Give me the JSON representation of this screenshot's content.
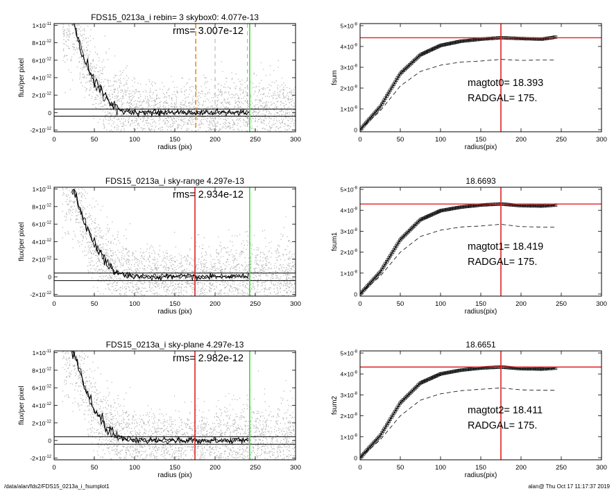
{
  "footer": {
    "path": "/data/alan/fds2/FDS15_0213a_i_fsumplot1",
    "stamp": "alan@  Thu Oct 17 11:17:37 2019"
  },
  "colors": {
    "red": "#e02020",
    "green": "#33dd33",
    "orange": "#f08a1c",
    "points": "#b0b0b0",
    "curve": "#000000"
  },
  "chart_data": [
    {
      "id": "profile0",
      "type": "scatter",
      "title": "FDS15_0213a_i rebin= 3    skybox0:  4.077e-13",
      "annotation": "rms= 3.007e-12",
      "xlabel": "radius (pix)",
      "ylabel": "flux/per pixel",
      "xlim": [
        0,
        300
      ],
      "ylim": [
        -2.2e-12,
        1.02e-11
      ],
      "xticks": [
        0,
        50,
        100,
        150,
        200,
        250,
        300
      ],
      "yticks": [
        -2e-12,
        0,
        2e-12,
        4e-12,
        6e-12,
        8e-12,
        1e-11
      ],
      "ytick_labels": [
        {
          "m": "-2",
          "e": "-12"
        },
        {
          "m": "0",
          "e": ""
        },
        {
          "m": "2",
          "e": "-12"
        },
        {
          "m": "4",
          "e": "-12"
        },
        {
          "m": "6",
          "e": "-12"
        },
        {
          "m": "8",
          "e": "-12"
        },
        {
          "m": "1",
          "e": "-11"
        }
      ],
      "sky_lines": [
        4.077e-13,
        -4.077e-13
      ],
      "vlines": [
        {
          "x": 176,
          "color": "orange",
          "style": "dashed"
        },
        {
          "x": 200,
          "color": "gray",
          "style": "dashed"
        },
        {
          "x": 240,
          "color": "gray",
          "style": "dashed"
        },
        {
          "x": 243,
          "color": "green",
          "style": "solid"
        }
      ],
      "profile": {
        "x": [
          25,
          30,
          35,
          40,
          45,
          50,
          55,
          60,
          65,
          70,
          75,
          80,
          90,
          100,
          120,
          150,
          200,
          243
        ],
        "y": [
          1e-11,
          8.5e-12,
          6.9e-12,
          5.6e-12,
          4.5e-12,
          3.6e-12,
          2.9e-12,
          2.2e-12,
          1.6e-12,
          1.1e-12,
          7e-13,
          4e-13,
          1.5e-13,
          5e-14,
          0,
          0,
          0,
          0
        ]
      }
    },
    {
      "id": "fsum0",
      "type": "scatter",
      "title": "",
      "annotation_lines": [
        "magtot0= 18.393",
        "RADGAL=    175."
      ],
      "xlabel": "radius(pix)",
      "ylabel": "fsum",
      "xlim": [
        0,
        300
      ],
      "ylim": [
        -1e-09,
        5.1e-08
      ],
      "xticks": [
        0,
        50,
        100,
        150,
        200,
        250,
        300
      ],
      "yticks": [
        0,
        1e-08,
        2e-08,
        3e-08,
        4e-08,
        5e-08
      ],
      "ytick_labels": [
        {
          "m": "0",
          "e": ""
        },
        {
          "m": "1×10",
          "e": "-8"
        },
        {
          "m": "2×10",
          "e": "-8"
        },
        {
          "m": "3×10",
          "e": "-8"
        },
        {
          "m": "4×10",
          "e": "-8"
        },
        {
          "m": "5×10",
          "e": "-8"
        }
      ],
      "hline": 4.42e-08,
      "vline": 175,
      "fsum": {
        "x": [
          0,
          25,
          50,
          75,
          100,
          125,
          150,
          175,
          200,
          225,
          243
        ],
        "y": [
          0,
          1.1e-08,
          2.7e-08,
          3.6e-08,
          4.05e-08,
          4.25e-08,
          4.35e-08,
          4.42e-08,
          4.38e-08,
          4.35e-08,
          4.45e-08
        ]
      },
      "fsum_dashed": {
        "x": [
          0,
          25,
          50,
          75,
          100,
          125,
          150,
          175,
          200,
          225,
          243
        ],
        "y": [
          0,
          9e-09,
          2.1e-08,
          2.8e-08,
          3.1e-08,
          3.25e-08,
          3.3e-08,
          3.38e-08,
          3.33e-08,
          3.35e-08,
          3.35e-08
        ]
      }
    },
    {
      "id": "profile1",
      "type": "scatter",
      "title": "FDS15_0213a_i sky-range  4.297e-13",
      "annotation": "rms= 2.934e-12",
      "xlabel": "radius (pix)",
      "ylabel": "flux/per pixel",
      "xlim": [
        0,
        300
      ],
      "ylim": [
        -2.2e-12,
        1.02e-11
      ],
      "xticks": [
        0,
        50,
        100,
        150,
        200,
        250,
        300
      ],
      "yticks": [
        -2e-12,
        0,
        2e-12,
        4e-12,
        6e-12,
        8e-12,
        1e-11
      ],
      "ytick_labels": [
        {
          "m": "-2",
          "e": "-12"
        },
        {
          "m": "0",
          "e": ""
        },
        {
          "m": "2",
          "e": "-12"
        },
        {
          "m": "4",
          "e": "-12"
        },
        {
          "m": "6",
          "e": "-12"
        },
        {
          "m": "8",
          "e": "-12"
        },
        {
          "m": "1",
          "e": "-11"
        }
      ],
      "sky_lines": [
        4.297e-13,
        -4.297e-13
      ],
      "vlines": [
        {
          "x": 175,
          "color": "red",
          "style": "solid"
        },
        {
          "x": 243,
          "color": "green",
          "style": "solid"
        }
      ],
      "profile": {
        "x": [
          25,
          30,
          35,
          40,
          45,
          50,
          55,
          60,
          65,
          70,
          75,
          80,
          90,
          100,
          120,
          150,
          200,
          243
        ],
        "y": [
          1e-11,
          8.5e-12,
          6.9e-12,
          5.6e-12,
          4.5e-12,
          3.6e-12,
          2.9e-12,
          2.2e-12,
          1.6e-12,
          1.1e-12,
          7e-13,
          4e-13,
          1.5e-13,
          5e-14,
          0,
          0,
          0,
          0
        ]
      }
    },
    {
      "id": "fsum1",
      "type": "scatter",
      "title": "18.6693",
      "annotation_lines": [
        "magtot1= 18.419",
        "RADGAL=    175."
      ],
      "xlabel": "radius(pix)",
      "ylabel": "fsum1",
      "xlim": [
        0,
        300
      ],
      "ylim": [
        -1e-09,
        5.1e-08
      ],
      "xticks": [
        0,
        50,
        100,
        150,
        200,
        250,
        300
      ],
      "yticks": [
        0,
        1e-08,
        2e-08,
        3e-08,
        4e-08,
        5e-08
      ],
      "ytick_labels": [
        {
          "m": "0",
          "e": ""
        },
        {
          "m": "1×10",
          "e": "-8"
        },
        {
          "m": "2×10",
          "e": "-8"
        },
        {
          "m": "3×10",
          "e": "-8"
        },
        {
          "m": "4×10",
          "e": "-8"
        },
        {
          "m": "5×10",
          "e": "-8"
        }
      ],
      "hline": 4.3e-08,
      "vline": 175,
      "fsum": {
        "x": [
          0,
          25,
          50,
          75,
          100,
          125,
          150,
          175,
          200,
          225,
          243
        ],
        "y": [
          0,
          1.05e-08,
          2.6e-08,
          3.55e-08,
          3.98e-08,
          4.15e-08,
          4.25e-08,
          4.3e-08,
          4.22e-08,
          4.2e-08,
          4.25e-08
        ]
      },
      "fsum_dashed": {
        "x": [
          0,
          25,
          50,
          75,
          100,
          125,
          150,
          175,
          200,
          225,
          243
        ],
        "y": [
          0,
          8.5e-09,
          2e-08,
          2.75e-08,
          3.05e-08,
          3.2e-08,
          3.25e-08,
          3.33e-08,
          3.22e-08,
          3.2e-08,
          3.2e-08
        ]
      }
    },
    {
      "id": "profile2",
      "type": "scatter",
      "title": "FDS15_0213a_i sky-plane  4.297e-13",
      "annotation": "rms= 2.982e-12",
      "xlabel": "radius (pix)",
      "ylabel": "flux/per pixel",
      "xlim": [
        0,
        300
      ],
      "ylim": [
        -2.2e-12,
        1.02e-11
      ],
      "xticks": [
        0,
        50,
        100,
        150,
        200,
        250,
        300
      ],
      "yticks": [
        -2e-12,
        0,
        2e-12,
        4e-12,
        6e-12,
        8e-12,
        1e-11
      ],
      "ytick_labels": [
        {
          "m": "-2",
          "e": "-12"
        },
        {
          "m": "0",
          "e": ""
        },
        {
          "m": "2",
          "e": "-12"
        },
        {
          "m": "4",
          "e": "-12"
        },
        {
          "m": "6",
          "e": "-12"
        },
        {
          "m": "8",
          "e": "-12"
        },
        {
          "m": "1",
          "e": "-11"
        }
      ],
      "sky_lines": [
        4.297e-13,
        -4.297e-13
      ],
      "vlines": [
        {
          "x": 175,
          "color": "red",
          "style": "solid"
        },
        {
          "x": 243,
          "color": "green",
          "style": "solid"
        }
      ],
      "profile": {
        "x": [
          25,
          30,
          35,
          40,
          45,
          50,
          55,
          60,
          65,
          70,
          75,
          80,
          90,
          100,
          120,
          150,
          200,
          243
        ],
        "y": [
          1e-11,
          8.5e-12,
          6.9e-12,
          5.6e-12,
          4.5e-12,
          3.6e-12,
          2.9e-12,
          2.2e-12,
          1.6e-12,
          1.1e-12,
          7e-13,
          4e-13,
          1.5e-13,
          5e-14,
          0,
          0,
          0,
          0
        ]
      }
    },
    {
      "id": "fsum2",
      "type": "scatter",
      "title": "18.6651",
      "annotation_lines": [
        "magtot2= 18.411",
        "RADGAL=    175."
      ],
      "xlabel": "radius(pix)",
      "ylabel": "fsum2",
      "xlim": [
        0,
        300
      ],
      "ylim": [
        -1e-09,
        5.1e-08
      ],
      "xticks": [
        0,
        50,
        100,
        150,
        200,
        250,
        300
      ],
      "yticks": [
        0,
        1e-08,
        2e-08,
        3e-08,
        4e-08,
        5e-08
      ],
      "ytick_labels": [
        {
          "m": "0",
          "e": ""
        },
        {
          "m": "1×10",
          "e": "-8"
        },
        {
          "m": "2×10",
          "e": "-8"
        },
        {
          "m": "3×10",
          "e": "-8"
        },
        {
          "m": "4×10",
          "e": "-8"
        },
        {
          "m": "5×10",
          "e": "-8"
        }
      ],
      "hline": 4.33e-08,
      "vline": 175,
      "fsum": {
        "x": [
          0,
          25,
          50,
          75,
          100,
          125,
          150,
          175,
          200,
          225,
          243
        ],
        "y": [
          0,
          1.05e-08,
          2.62e-08,
          3.57e-08,
          4e-08,
          4.18e-08,
          4.28e-08,
          4.33e-08,
          4.25e-08,
          4.23e-08,
          4.28e-08
        ]
      },
      "fsum_dashed": {
        "x": [
          0,
          25,
          50,
          75,
          100,
          125,
          150,
          175,
          200,
          225,
          243
        ],
        "y": [
          0,
          8.5e-09,
          2e-08,
          2.75e-08,
          3.05e-08,
          3.2e-08,
          3.27e-08,
          3.33e-08,
          3.24e-08,
          3.22e-08,
          3.22e-08
        ]
      }
    }
  ]
}
